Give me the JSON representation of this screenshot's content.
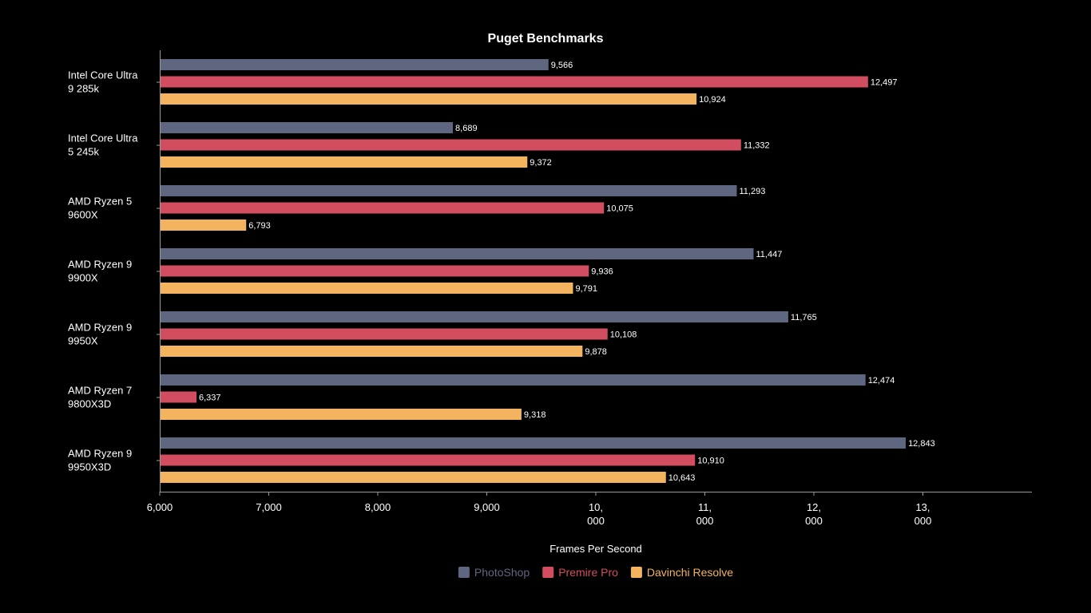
{
  "chart_data": {
    "type": "bar",
    "orientation": "horizontal",
    "title": "Puget Benchmarks",
    "xlabel": "Frames Per Second",
    "ylabel": "",
    "xlim": [
      6000,
      14000
    ],
    "x_ticks": [
      {
        "value": 6000,
        "lines": [
          "6,000"
        ]
      },
      {
        "value": 7000,
        "lines": [
          "7,000"
        ]
      },
      {
        "value": 8000,
        "lines": [
          "8,000"
        ]
      },
      {
        "value": 9000,
        "lines": [
          "9,000"
        ]
      },
      {
        "value": 10000,
        "lines": [
          "10,",
          "000"
        ]
      },
      {
        "value": 11000,
        "lines": [
          "11,",
          "000"
        ]
      },
      {
        "value": 12000,
        "lines": [
          "12,",
          "000"
        ]
      },
      {
        "value": 13000,
        "lines": [
          "13,",
          "000"
        ]
      }
    ],
    "categories": [
      [
        "Intel Core Ultra",
        "9 285k"
      ],
      [
        "Intel Core Ultra",
        "5 245k"
      ],
      [
        "AMD Ryzen 5",
        "9600X"
      ],
      [
        "AMD Ryzen 9",
        "9900X"
      ],
      [
        "AMD Ryzen 9",
        "9950X"
      ],
      [
        "AMD Ryzen 7",
        "9800X3D"
      ],
      [
        "AMD Ryzen 9",
        "9950X3D"
      ]
    ],
    "series": [
      {
        "name": "PhotoShop",
        "color": "#5f6680",
        "values": [
          9566,
          8689,
          11293,
          11447,
          11765,
          12474,
          12843
        ],
        "labels": [
          "9,566",
          "8,689",
          "11,293",
          "11,447",
          "11,765",
          "12,474",
          "12,843"
        ]
      },
      {
        "name": "Premire Pro",
        "color": "#d24d60",
        "values": [
          12497,
          11332,
          10075,
          9936,
          10108,
          6337,
          10910
        ],
        "labels": [
          "12,497",
          "11,332",
          "10,075",
          "9,936",
          "10,108",
          "6,337",
          "10,910"
        ]
      },
      {
        "name": "Davinchi Resolve",
        "color": "#f3b35f",
        "values": [
          10924,
          9372,
          6793,
          9791,
          9878,
          9318,
          10643
        ],
        "labels": [
          "10,924",
          "9,372",
          "6,793",
          "9,791",
          "9,878",
          "9,318",
          "10,643"
        ]
      }
    ],
    "legend_position": "bottom-center",
    "grid": false
  }
}
